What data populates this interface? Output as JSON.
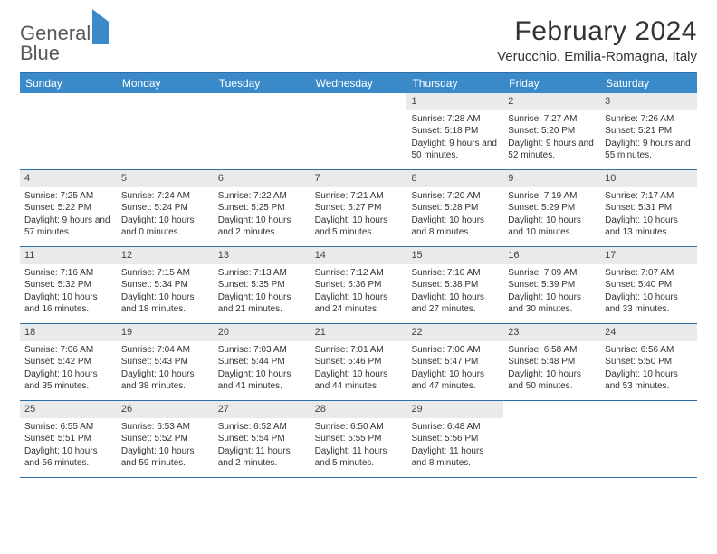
{
  "logo": {
    "line1": "General",
    "line2": "Blue"
  },
  "title": "February 2024",
  "location": "Verucchio, Emilia-Romagna, Italy",
  "colors": {
    "header_bar": "#3a8ac9",
    "rule": "#2f6fa7",
    "daynum_bg": "#e9eaeb",
    "text": "#333333",
    "logo_gray": "#58595b"
  },
  "weekdays": [
    "Sunday",
    "Monday",
    "Tuesday",
    "Wednesday",
    "Thursday",
    "Friday",
    "Saturday"
  ],
  "weeks": [
    [
      {
        "empty": true
      },
      {
        "empty": true
      },
      {
        "empty": true
      },
      {
        "empty": true
      },
      {
        "num": "1",
        "sunrise": "Sunrise: 7:28 AM",
        "sunset": "Sunset: 5:18 PM",
        "daylight": "Daylight: 9 hours and 50 minutes."
      },
      {
        "num": "2",
        "sunrise": "Sunrise: 7:27 AM",
        "sunset": "Sunset: 5:20 PM",
        "daylight": "Daylight: 9 hours and 52 minutes."
      },
      {
        "num": "3",
        "sunrise": "Sunrise: 7:26 AM",
        "sunset": "Sunset: 5:21 PM",
        "daylight": "Daylight: 9 hours and 55 minutes."
      }
    ],
    [
      {
        "num": "4",
        "sunrise": "Sunrise: 7:25 AM",
        "sunset": "Sunset: 5:22 PM",
        "daylight": "Daylight: 9 hours and 57 minutes."
      },
      {
        "num": "5",
        "sunrise": "Sunrise: 7:24 AM",
        "sunset": "Sunset: 5:24 PM",
        "daylight": "Daylight: 10 hours and 0 minutes."
      },
      {
        "num": "6",
        "sunrise": "Sunrise: 7:22 AM",
        "sunset": "Sunset: 5:25 PM",
        "daylight": "Daylight: 10 hours and 2 minutes."
      },
      {
        "num": "7",
        "sunrise": "Sunrise: 7:21 AM",
        "sunset": "Sunset: 5:27 PM",
        "daylight": "Daylight: 10 hours and 5 minutes."
      },
      {
        "num": "8",
        "sunrise": "Sunrise: 7:20 AM",
        "sunset": "Sunset: 5:28 PM",
        "daylight": "Daylight: 10 hours and 8 minutes."
      },
      {
        "num": "9",
        "sunrise": "Sunrise: 7:19 AM",
        "sunset": "Sunset: 5:29 PM",
        "daylight": "Daylight: 10 hours and 10 minutes."
      },
      {
        "num": "10",
        "sunrise": "Sunrise: 7:17 AM",
        "sunset": "Sunset: 5:31 PM",
        "daylight": "Daylight: 10 hours and 13 minutes."
      }
    ],
    [
      {
        "num": "11",
        "sunrise": "Sunrise: 7:16 AM",
        "sunset": "Sunset: 5:32 PM",
        "daylight": "Daylight: 10 hours and 16 minutes."
      },
      {
        "num": "12",
        "sunrise": "Sunrise: 7:15 AM",
        "sunset": "Sunset: 5:34 PM",
        "daylight": "Daylight: 10 hours and 18 minutes."
      },
      {
        "num": "13",
        "sunrise": "Sunrise: 7:13 AM",
        "sunset": "Sunset: 5:35 PM",
        "daylight": "Daylight: 10 hours and 21 minutes."
      },
      {
        "num": "14",
        "sunrise": "Sunrise: 7:12 AM",
        "sunset": "Sunset: 5:36 PM",
        "daylight": "Daylight: 10 hours and 24 minutes."
      },
      {
        "num": "15",
        "sunrise": "Sunrise: 7:10 AM",
        "sunset": "Sunset: 5:38 PM",
        "daylight": "Daylight: 10 hours and 27 minutes."
      },
      {
        "num": "16",
        "sunrise": "Sunrise: 7:09 AM",
        "sunset": "Sunset: 5:39 PM",
        "daylight": "Daylight: 10 hours and 30 minutes."
      },
      {
        "num": "17",
        "sunrise": "Sunrise: 7:07 AM",
        "sunset": "Sunset: 5:40 PM",
        "daylight": "Daylight: 10 hours and 33 minutes."
      }
    ],
    [
      {
        "num": "18",
        "sunrise": "Sunrise: 7:06 AM",
        "sunset": "Sunset: 5:42 PM",
        "daylight": "Daylight: 10 hours and 35 minutes."
      },
      {
        "num": "19",
        "sunrise": "Sunrise: 7:04 AM",
        "sunset": "Sunset: 5:43 PM",
        "daylight": "Daylight: 10 hours and 38 minutes."
      },
      {
        "num": "20",
        "sunrise": "Sunrise: 7:03 AM",
        "sunset": "Sunset: 5:44 PM",
        "daylight": "Daylight: 10 hours and 41 minutes."
      },
      {
        "num": "21",
        "sunrise": "Sunrise: 7:01 AM",
        "sunset": "Sunset: 5:46 PM",
        "daylight": "Daylight: 10 hours and 44 minutes."
      },
      {
        "num": "22",
        "sunrise": "Sunrise: 7:00 AM",
        "sunset": "Sunset: 5:47 PM",
        "daylight": "Daylight: 10 hours and 47 minutes."
      },
      {
        "num": "23",
        "sunrise": "Sunrise: 6:58 AM",
        "sunset": "Sunset: 5:48 PM",
        "daylight": "Daylight: 10 hours and 50 minutes."
      },
      {
        "num": "24",
        "sunrise": "Sunrise: 6:56 AM",
        "sunset": "Sunset: 5:50 PM",
        "daylight": "Daylight: 10 hours and 53 minutes."
      }
    ],
    [
      {
        "num": "25",
        "sunrise": "Sunrise: 6:55 AM",
        "sunset": "Sunset: 5:51 PM",
        "daylight": "Daylight: 10 hours and 56 minutes."
      },
      {
        "num": "26",
        "sunrise": "Sunrise: 6:53 AM",
        "sunset": "Sunset: 5:52 PM",
        "daylight": "Daylight: 10 hours and 59 minutes."
      },
      {
        "num": "27",
        "sunrise": "Sunrise: 6:52 AM",
        "sunset": "Sunset: 5:54 PM",
        "daylight": "Daylight: 11 hours and 2 minutes."
      },
      {
        "num": "28",
        "sunrise": "Sunrise: 6:50 AM",
        "sunset": "Sunset: 5:55 PM",
        "daylight": "Daylight: 11 hours and 5 minutes."
      },
      {
        "num": "29",
        "sunrise": "Sunrise: 6:48 AM",
        "sunset": "Sunset: 5:56 PM",
        "daylight": "Daylight: 11 hours and 8 minutes."
      },
      {
        "empty": true
      },
      {
        "empty": true
      }
    ]
  ]
}
